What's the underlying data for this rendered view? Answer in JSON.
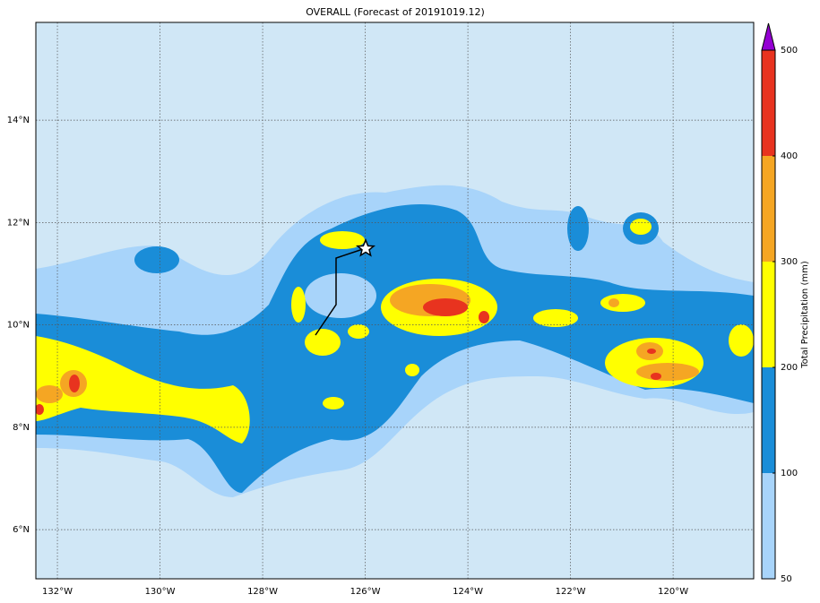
{
  "title": "OVERALL (Forecast of 20191019.12)",
  "map": {
    "background": "#d0e7f6",
    "xlim": [
      -132.42,
      -118.43
    ],
    "ylim": [
      5.04,
      15.91
    ],
    "x_ticks": [
      {
        "value": -132,
        "label": "132°W"
      },
      {
        "value": -130,
        "label": "130°W"
      },
      {
        "value": -128,
        "label": "128°W"
      },
      {
        "value": -126,
        "label": "126°W"
      },
      {
        "value": -124,
        "label": "124°W"
      },
      {
        "value": -122,
        "label": "122°W"
      },
      {
        "value": -120,
        "label": "120°W"
      }
    ],
    "y_ticks": [
      {
        "value": 6,
        "label": "6°N"
      },
      {
        "value": 8,
        "label": "8°N"
      },
      {
        "value": 10,
        "label": "10°N"
      },
      {
        "value": 12,
        "label": "12°N"
      },
      {
        "value": 14,
        "label": "14°N"
      }
    ]
  },
  "colorbar": {
    "label": "Total Precipitation (mm)",
    "levels": [
      50,
      100,
      200,
      300,
      400,
      500
    ],
    "colors": [
      "#a8d4fa",
      "#1a8dd8",
      "#ffff00",
      "#f5a623",
      "#e8331f"
    ],
    "extend_color": "#9400d3"
  }
}
